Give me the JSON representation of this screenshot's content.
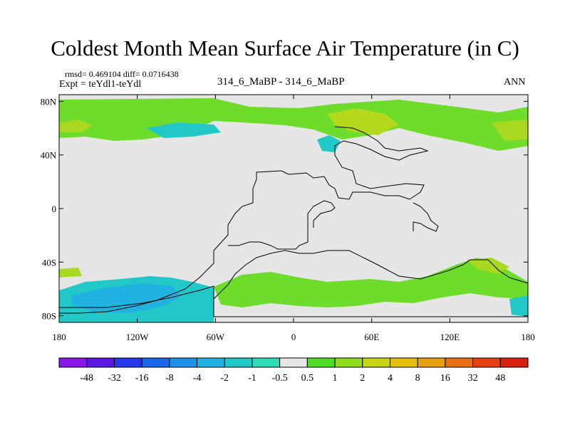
{
  "chart_data": {
    "type": "heatmap",
    "title": "Coldest Month Mean Surface Air Temperature (in C)",
    "stats_line": "rmsd= 0.469104 diff= 0.0716438",
    "expt_line": "Expt = teYdl1-teYdl",
    "center_label": "314_6_MaBP - 314_6_MaBP",
    "season": "ANN",
    "x_ticks": [
      "180",
      "120W",
      "60W",
      "0",
      "60E",
      "120E",
      "180"
    ],
    "x_tick_lons": [
      -180,
      -120,
      -60,
      0,
      60,
      120,
      180
    ],
    "y_ticks": [
      "80N",
      "40N",
      "0",
      "40S",
      "80S"
    ],
    "y_tick_lats": [
      80,
      40,
      0,
      -40,
      -80
    ],
    "xlim": [
      -180,
      180
    ],
    "ylim": [
      -85,
      85
    ],
    "colorbar": {
      "labels": [
        "-48",
        "-32",
        "-16",
        "-8",
        "-4",
        "-2",
        "-1",
        "-0.5",
        "0.5",
        "1",
        "2",
        "4",
        "8",
        "16",
        "32",
        "48"
      ],
      "colors": [
        "#8a16e6",
        "#5a18e0",
        "#2838e8",
        "#1a68e8",
        "#1e90e8",
        "#20b2e0",
        "#22c8c8",
        "#30dcb8",
        "#e6e6e6",
        "#50dc28",
        "#90dc18",
        "#c8d418",
        "#e6c010",
        "#e8a010",
        "#e87010",
        "#e64010",
        "#d82010"
      ]
    }
  }
}
